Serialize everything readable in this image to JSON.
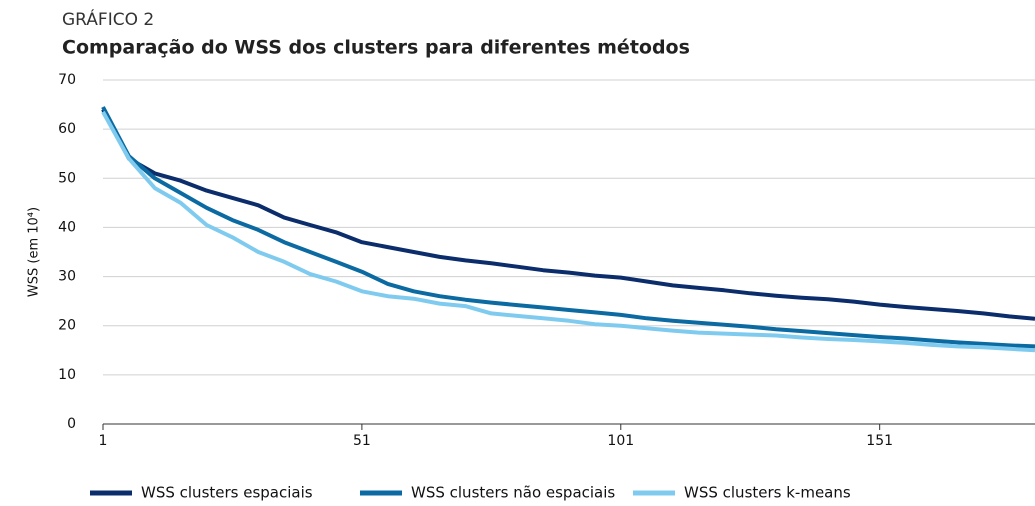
{
  "chart_data": {
    "type": "line",
    "kicker": "GRÁFICO 2",
    "title": "Comparação do WSS dos clusters para diferentes métodos",
    "y_label": "WSS (em 10⁴)",
    "x": [
      1,
      6,
      11,
      16,
      21,
      26,
      31,
      36,
      41,
      46,
      51,
      56,
      61,
      66,
      71,
      76,
      81,
      86,
      91,
      96,
      101,
      106,
      111,
      116,
      121,
      126,
      131,
      136,
      141,
      146,
      151,
      156,
      161,
      166,
      171,
      176,
      181
    ],
    "series": [
      {
        "name": "WSS clusters espaciais",
        "color": "#0c2d6b",
        "values": [
          64,
          54,
          51,
          49.5,
          47.5,
          46,
          44.5,
          42,
          40.5,
          39,
          37,
          36,
          35,
          34,
          33.3,
          32.7,
          32,
          31.3,
          30.8,
          30.2,
          29.8,
          29,
          28.2,
          27.7,
          27.2,
          26.6,
          26.1,
          25.7,
          25.4,
          24.9,
          24.3,
          23.8,
          23.4,
          23,
          22.5,
          21.9,
          21.4
        ]
      },
      {
        "name": "WSS clusters não espaciais",
        "color": "#0a6aa1",
        "values": [
          64.5,
          54.5,
          50,
          47,
          44,
          41.5,
          39.5,
          37,
          35,
          33,
          31,
          28.5,
          27,
          26,
          25.3,
          24.7,
          24.2,
          23.7,
          23.2,
          22.7,
          22.2,
          21.5,
          21,
          20.6,
          20.2,
          19.8,
          19.3,
          18.9,
          18.5,
          18.1,
          17.7,
          17.4,
          17,
          16.6,
          16.3,
          16,
          15.8
        ]
      },
      {
        "name": "WSS clusters k-means",
        "color": "#7fcbef",
        "values": [
          63.5,
          54,
          48,
          45,
          40.5,
          38,
          35,
          33,
          30.5,
          29,
          27,
          26,
          25.5,
          24.5,
          24,
          22.5,
          22,
          21.5,
          21,
          20.3,
          20,
          19.5,
          19,
          18.6,
          18.4,
          18.2,
          18,
          17.6,
          17.3,
          17.1,
          16.8,
          16.5,
          16.1,
          15.8,
          15.6,
          15.3,
          15
        ]
      }
    ],
    "xlim": [
      1,
      181
    ],
    "xticks": [
      1,
      51,
      101,
      151
    ],
    "ylim": [
      0,
      70
    ],
    "yticks": [
      0,
      10,
      20,
      30,
      40,
      50,
      60,
      70
    ],
    "grid": true
  }
}
